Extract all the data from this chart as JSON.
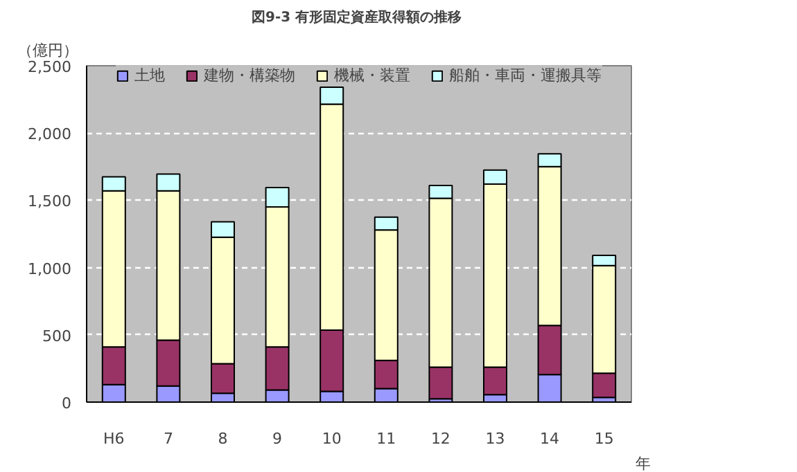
{
  "chart_data": {
    "type": "bar",
    "stacked": true,
    "title": "図9-3  有形固定資産取得額の推移",
    "ylabel": "（億円）",
    "xlabel": "年",
    "categories": [
      "H6",
      "7",
      "8",
      "9",
      "10",
      "11",
      "12",
      "13",
      "14",
      "15"
    ],
    "series": [
      {
        "name": "土地",
        "color": "#9999ff",
        "values": [
          130,
          120,
          65,
          90,
          80,
          100,
          25,
          55,
          205,
          35
        ]
      },
      {
        "name": "建物・構築物",
        "color": "#993366",
        "values": [
          280,
          340,
          220,
          320,
          455,
          210,
          235,
          205,
          365,
          180
        ]
      },
      {
        "name": "機械・装置",
        "color": "#ffffcc",
        "values": [
          1160,
          1110,
          940,
          1040,
          1680,
          970,
          1255,
          1360,
          1180,
          800
        ]
      },
      {
        "name": "船舶・車両・運搬具等",
        "color": "#ccffff",
        "values": [
          105,
          125,
          115,
          145,
          125,
          95,
          95,
          105,
          95,
          75
        ]
      }
    ],
    "ylim": [
      0,
      2500
    ],
    "yticks": [
      0,
      {
        "value": 500,
        "label": "500"
      },
      {
        "value": 1000,
        "label": "1,000"
      },
      {
        "value": 1500,
        "label": "1,500"
      },
      {
        "value": 2000,
        "label": "2,000"
      },
      {
        "value": 2500,
        "label": "2,500"
      }
    ],
    "grid": "y",
    "legend": "top"
  }
}
